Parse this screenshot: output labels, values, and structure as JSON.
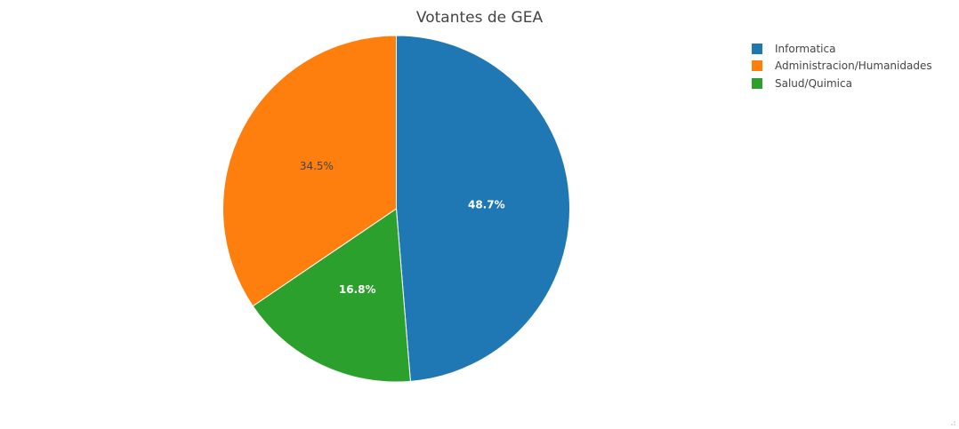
{
  "chart_data": {
    "type": "pie",
    "title": "Votantes de GEA",
    "slices": [
      {
        "label": "Informatica",
        "percent": 48.7,
        "text": "48.7%",
        "color": "#1f77b4",
        "text_color": "#ffffff"
      },
      {
        "label": "Salud/Quimica",
        "percent": 16.8,
        "text": "16.8%",
        "color": "#2ca02c",
        "text_color": "#ffffff"
      },
      {
        "label": "Administracion/Humanidades",
        "percent": 34.5,
        "text": "34.5%",
        "color": "#ff7f0e",
        "text_color": "#444444"
      }
    ],
    "legend": {
      "placement": "top-right",
      "entries": [
        {
          "label": "Informatica",
          "color": "#1f77b4"
        },
        {
          "label": "Administracion/Humanidades",
          "color": "#ff7f0e"
        },
        {
          "label": "Salud/Quimica",
          "color": "#2ca02c"
        }
      ]
    }
  },
  "ui": {
    "resize_handle_icon": "resize-grip-icon"
  }
}
